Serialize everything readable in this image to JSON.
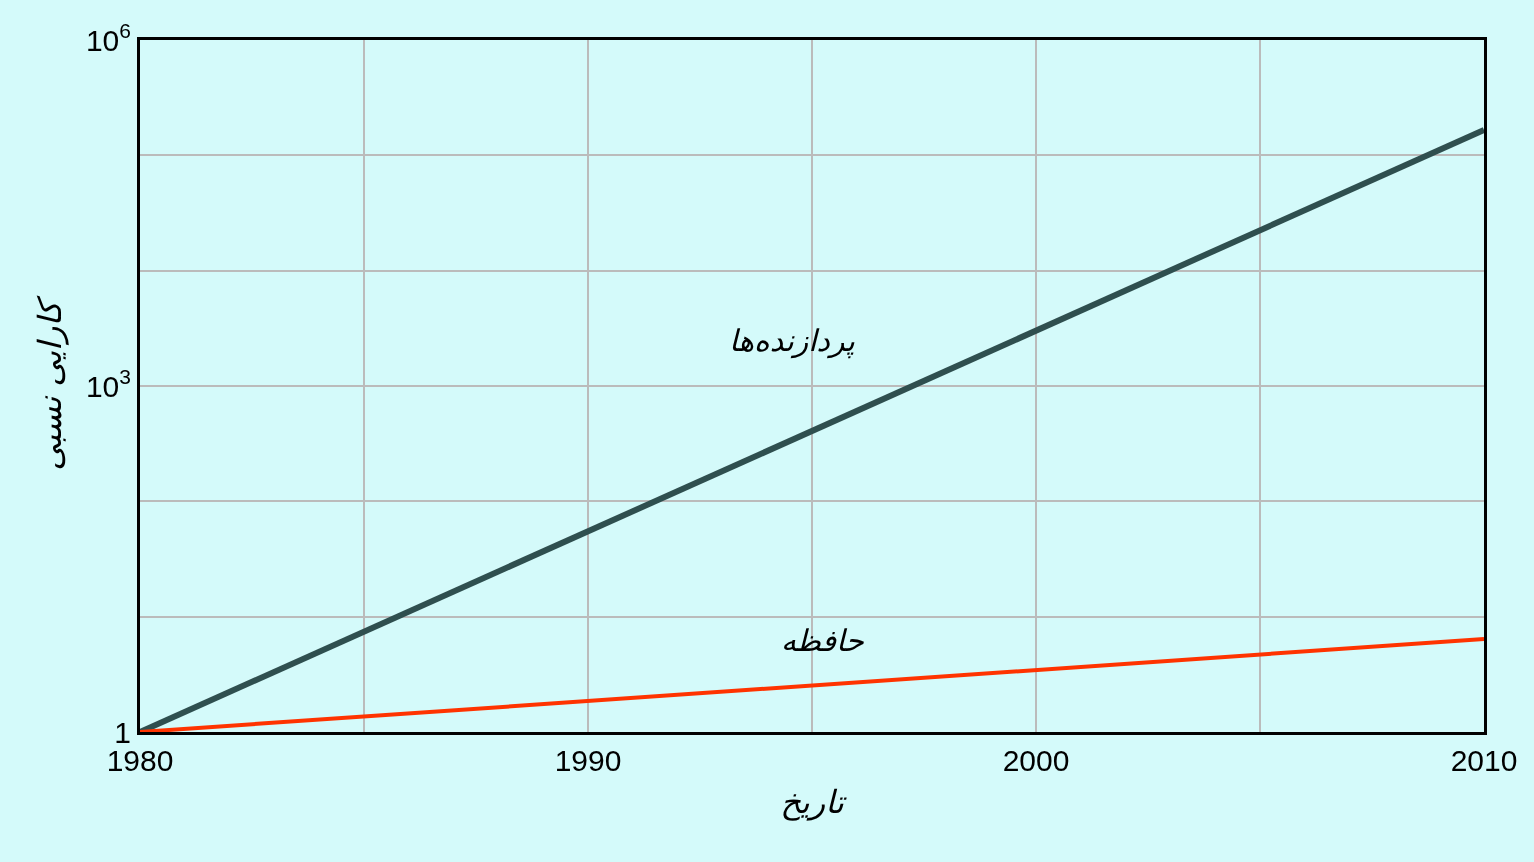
{
  "chart_data": {
    "type": "line",
    "xlabel": "تاریخ",
    "ylabel": "کارایی نسبی",
    "x": [
      1980,
      2010
    ],
    "series": [
      {
        "name": "پردازنده‌ها",
        "color": "#2f4f4f",
        "values": [
          1,
          166000
        ]
      },
      {
        "name": "حافظه",
        "color": "#ff3300",
        "values": [
          1,
          6.4
        ]
      }
    ],
    "log": "y",
    "xlim": [
      1980,
      2010
    ],
    "ylim": [
      1,
      1000000
    ],
    "xticks": [
      1980,
      {
        "value": 1985,
        "label": null
      },
      1990,
      {
        "value": 1995,
        "label": null
      },
      2000,
      {
        "value": 2005,
        "label": null
      },
      2010
    ],
    "yticks": [
      1,
      {
        "value": 10,
        "label": null
      },
      {
        "value": 100,
        "label": null
      },
      {
        "value": 1000,
        "label": "10$^{3}$"
      },
      {
        "value": 10000,
        "label": null
      },
      {
        "value": 100000,
        "label": null
      },
      {
        "value": 1000000,
        "label": "10$^{6}$"
      }
    ],
    "grid": true,
    "legend": false,
    "marker": "none",
    "line_style": "solid"
  }
}
